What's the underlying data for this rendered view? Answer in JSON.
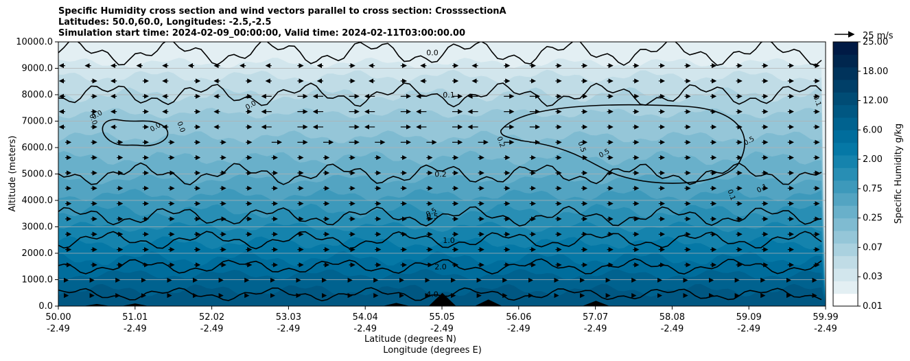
{
  "chart_data": {
    "type": "heatmap",
    "title_lines": [
      "Specific Humidity cross section and wind vectors parallel to cross section: CrosssectionA",
      "Latitudes: 50.0,60.0, Longitudes: -2.5,-2.5",
      "Simulation start time: 2024-02-09_00:00:00, Valid time: 2024-02-11T03:00:00.00"
    ],
    "ylabel": "Altitude (meters)",
    "xlabel_lines": [
      "Latitude (degrees N)",
      "Longitude (degrees E)"
    ],
    "ylim": [
      0,
      10000
    ],
    "y_ticks": [
      "0.0",
      "1000.0",
      "2000.0",
      "3000.0",
      "4000.0",
      "5000.0",
      "6000.0",
      "7000.0",
      "8000.0",
      "9000.0",
      "10000.0"
    ],
    "x_ticks": [
      {
        "lat": "50.00",
        "lon": "-2.49"
      },
      {
        "lat": "51.01",
        "lon": "-2.49"
      },
      {
        "lat": "52.02",
        "lon": "-2.49"
      },
      {
        "lat": "53.03",
        "lon": "-2.49"
      },
      {
        "lat": "54.04",
        "lon": "-2.49"
      },
      {
        "lat": "55.05",
        "lon": "-2.49"
      },
      {
        "lat": "56.06",
        "lon": "-2.49"
      },
      {
        "lat": "57.07",
        "lon": "-2.49"
      },
      {
        "lat": "58.08",
        "lon": "-2.49"
      },
      {
        "lat": "59.09",
        "lon": "-2.49"
      },
      {
        "lat": "59.99",
        "lon": "-2.49"
      }
    ],
    "grid": "horizontal",
    "colorbar": {
      "label": "Specific Humidity g/kg",
      "ticks": [
        "0.01",
        "0.03",
        "0.07",
        "0.25",
        "0.75",
        "2.00",
        "6.00",
        "12.00",
        "18.00",
        "25.00"
      ],
      "colors": [
        "#ffffff",
        "#e3eff3",
        "#d2e6ed",
        "#c0dce6",
        "#aad1df",
        "#95c6d8",
        "#7fbbd1",
        "#69b0ca",
        "#53a4c2",
        "#3d99bb",
        "#288eb4",
        "#1583ad",
        "#0578a6",
        "#006d9c",
        "#00628f",
        "#005782",
        "#004c75",
        "#003f68",
        "#00335b",
        "#00264e",
        "#001a45"
      ]
    },
    "quiver_key": "25 m/s",
    "contours": [
      {
        "label": "4.0",
        "altitude": 450
      },
      {
        "label": "2.0",
        "altitude": 1500
      },
      {
        "label": "1.0",
        "altitude": 2500
      },
      {
        "label": "0.5",
        "altitude": 3400
      },
      {
        "label": "0.2",
        "altitude": 5000
      },
      {
        "label": "0.1",
        "altitude": 8000
      },
      {
        "label": "0.0",
        "altitude": 9600
      }
    ],
    "extra_contour_labels": [
      "0.5",
      "0.5",
      "0.5",
      "0.2",
      "0.5",
      "0.1",
      "0.1",
      "0.1",
      "0.0",
      "0.0",
      "0.0",
      "0.0",
      "0.0"
    ],
    "terrain": [
      {
        "lat": 50.5,
        "height": 80
      },
      {
        "lat": 51.0,
        "height": 100
      },
      {
        "lat": 54.4,
        "height": 120
      },
      {
        "lat": 55.0,
        "height": 500
      },
      {
        "lat": 55.6,
        "height": 250
      },
      {
        "lat": 57.0,
        "height": 200
      }
    ]
  }
}
